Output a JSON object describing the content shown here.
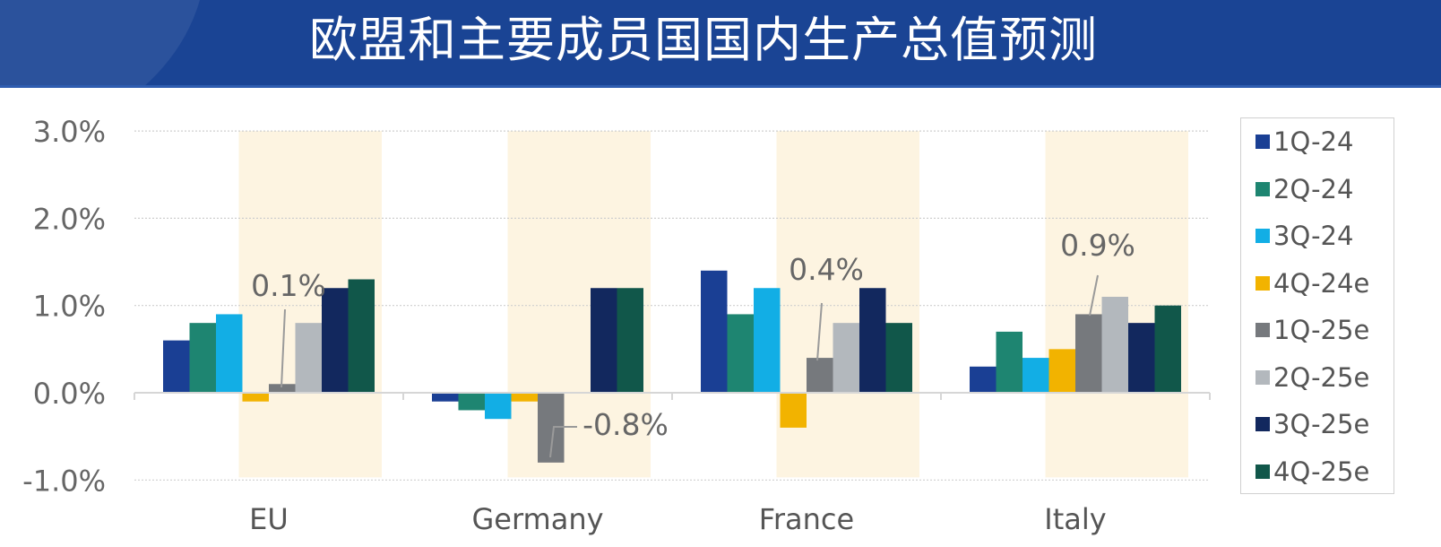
{
  "header": {
    "title": "欧盟和主要成员国国内生产总值预测",
    "background_color": "#1a4494"
  },
  "chart_data": {
    "type": "bar",
    "title": "欧盟和主要成员国国内生产总值预测",
    "xlabel": "",
    "ylabel": "",
    "categories": [
      "EU",
      "Germany",
      "France",
      "Italy"
    ],
    "y_ticks": [
      "3.0%",
      "2.0%",
      "1.0%",
      "0.0%",
      "-1.0%"
    ],
    "ylim": [
      -1.0,
      3.0
    ],
    "grid": "dotted horizontal",
    "legend_position": "right",
    "highlight_band": "forecast quarters (4Q-24e to 4Q-25e) shaded light beige",
    "series": [
      {
        "name": "1Q-24",
        "color": "#1a3f94",
        "values": [
          0.6,
          -0.1,
          1.4,
          0.3
        ]
      },
      {
        "name": "2Q-24",
        "color": "#1e8571",
        "values": [
          0.8,
          -0.2,
          0.9,
          0.7
        ]
      },
      {
        "name": "3Q-24",
        "color": "#12aee5",
        "values": [
          0.9,
          -0.3,
          1.2,
          0.4
        ]
      },
      {
        "name": "4Q-24e",
        "color": "#f2b300",
        "values": [
          -0.1,
          -0.1,
          -0.4,
          0.5
        ]
      },
      {
        "name": "1Q-25e",
        "color": "#76797d",
        "values": [
          0.1,
          -0.8,
          0.4,
          0.9
        ]
      },
      {
        "name": "2Q-25e",
        "color": "#b3b8bd",
        "values": [
          0.8,
          0.0,
          0.8,
          1.1
        ]
      },
      {
        "name": "3Q-25e",
        "color": "#12285e",
        "values": [
          1.2,
          1.2,
          1.2,
          0.8
        ]
      },
      {
        "name": "4Q-25e",
        "color": "#11574a",
        "values": [
          1.3,
          1.2,
          0.8,
          1.0
        ]
      }
    ],
    "annotations": [
      {
        "category": "EU",
        "series": "1Q-25e",
        "text": "0.1%"
      },
      {
        "category": "Germany",
        "series": "1Q-25e",
        "text": "-0.8%"
      },
      {
        "category": "France",
        "series": "1Q-25e",
        "text": "0.4%"
      },
      {
        "category": "Italy",
        "series": "1Q-25e",
        "text": "0.9%"
      }
    ]
  }
}
